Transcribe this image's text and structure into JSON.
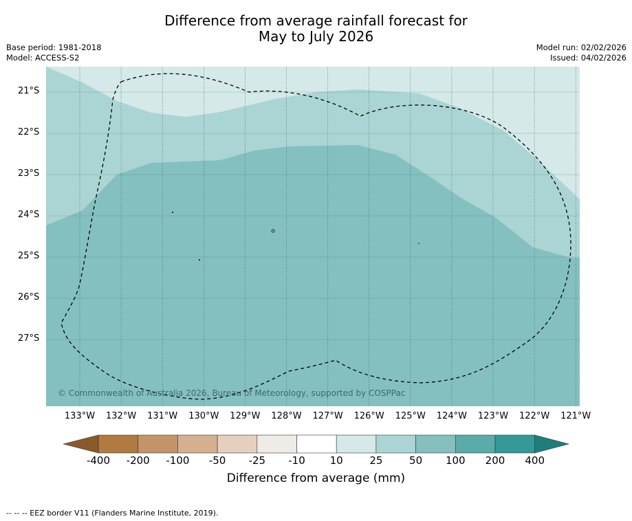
{
  "title": {
    "line1": "Difference from average rainfall forecast for",
    "line2": "May to July 2026"
  },
  "meta": {
    "base_period": "Base period: 1981-2018",
    "model": "Model: ACCESS-S2",
    "model_run": "Model run: 02/02/2026",
    "issued": "Issued: 04/02/2026"
  },
  "axes": {
    "latitudes": [
      "21°S",
      "22°S",
      "23°S",
      "24°S",
      "25°S",
      "26°S",
      "27°S"
    ],
    "longitudes": [
      "133°W",
      "132°W",
      "131°W",
      "130°W",
      "129°W",
      "128°W",
      "127°W",
      "126°W",
      "125°W",
      "124°W",
      "123°W",
      "122°W",
      "121°W"
    ]
  },
  "colorbar": {
    "ticks": [
      "-400",
      "-200",
      "-100",
      "-50",
      "-25",
      "-10",
      "10",
      "25",
      "50",
      "100",
      "200",
      "400"
    ],
    "colors": [
      "#b07a40",
      "#c39468",
      "#d4b08f",
      "#e4d0bd",
      "#efebe6",
      "#ffffff",
      "#d4e9e8",
      "#aad5d4",
      "#84c0bf",
      "#5aacab",
      "#349998"
    ],
    "under_color": "#8b5a2b",
    "over_color": "#1f7d7c",
    "label": "Difference from average (mm)"
  },
  "map_regions": [
    {
      "category": "10 to 25 mm",
      "color": "#d4e9e8"
    },
    {
      "category": "25 to 50 mm",
      "color": "#aad5d4"
    },
    {
      "category": "50 to 100 mm",
      "color": "#84c0bf"
    }
  ],
  "credit": "© Commonwealth of Australia 2026, Bureau of Meteorology, supported by COSPPac",
  "footer": "--  --  -- EEZ border V11 (Flanders Marine Institute, 2019)."
}
